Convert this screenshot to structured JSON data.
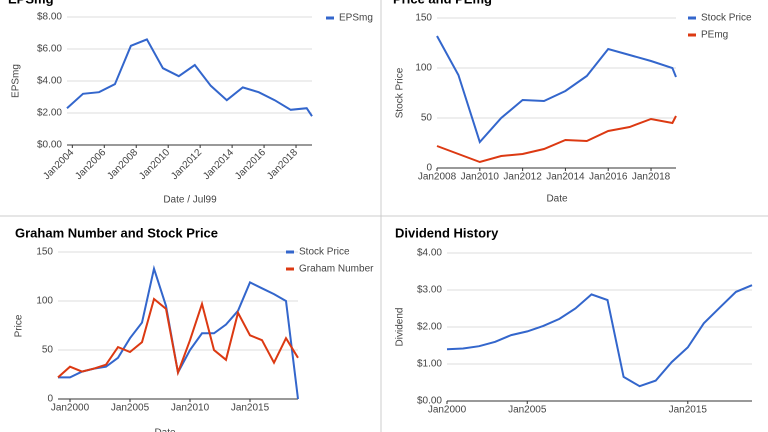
{
  "chart_data": [
    {
      "type": "line",
      "title": "EPSmg",
      "x_label": "Date / Jul99",
      "y_label": "EPSmg",
      "x": [
        "2003-09",
        "2004-09",
        "2005-09",
        "2006-09",
        "2007-09",
        "2008-09",
        "2009-09",
        "2010-09",
        "2011-09",
        "2012-09",
        "2013-09",
        "2014-09",
        "2015-09",
        "2016-09",
        "2017-09",
        "2018-09",
        "2019-01"
      ],
      "series": [
        {
          "name": "EPSmg",
          "color": "#3366cc",
          "values": [
            2.3,
            3.2,
            3.3,
            3.8,
            6.2,
            6.6,
            4.8,
            4.3,
            5.0,
            3.7,
            2.8,
            3.6,
            3.3,
            2.8,
            2.2,
            2.3,
            1.8
          ]
        }
      ],
      "xlim": [
        "2003-09",
        "2019-01"
      ],
      "xticks": [
        {
          "value": "2004-01",
          "label": "Jan2004"
        },
        {
          "value": "2006-01",
          "label": "Jan2006"
        },
        {
          "value": "2008-01",
          "label": "Jan2008"
        },
        {
          "value": "2010-01",
          "label": "Jan2010"
        },
        {
          "value": "2012-01",
          "label": "Jan2012"
        },
        {
          "value": "2014-01",
          "label": "Jan2014"
        },
        {
          "value": "2016-01",
          "label": "Jan2016"
        },
        {
          "value": "2018-01",
          "label": "Jan2018"
        }
      ],
      "ylim": [
        0,
        8
      ],
      "yticks": [
        {
          "value": 0,
          "label": "$0.00"
        },
        {
          "value": 2,
          "label": "$2.00"
        },
        {
          "value": 4,
          "label": "$4.00"
        },
        {
          "value": 6,
          "label": "$6.00"
        },
        {
          "value": 8,
          "label": "$8.00"
        }
      ],
      "grid": true,
      "legend": "right"
    },
    {
      "type": "line",
      "title": "Price and PEmg",
      "x_label": "Date",
      "y_label": "Stock Price",
      "x": [
        "2008-01",
        "2009-01",
        "2010-01",
        "2011-01",
        "2012-01",
        "2013-01",
        "2014-01",
        "2015-01",
        "2016-01",
        "2017-01",
        "2018-01",
        "2019-01",
        "2019-03"
      ],
      "series": [
        {
          "name": "Stock Price",
          "color": "#3366cc",
          "values": [
            132,
            93,
            26,
            50,
            68,
            67,
            77,
            92,
            119,
            113,
            107,
            100,
            91
          ]
        },
        {
          "name": "PEmg",
          "color": "#dc3912",
          "values": [
            22,
            14,
            6,
            12,
            14,
            19,
            28,
            27,
            37,
            41,
            49,
            45,
            52
          ]
        }
      ],
      "xlim": [
        "2008-01",
        "2019-03"
      ],
      "xticks": [
        {
          "value": "2008-01",
          "label": "Jan2008"
        },
        {
          "value": "2010-01",
          "label": "Jan2010"
        },
        {
          "value": "2012-01",
          "label": "Jan2012"
        },
        {
          "value": "2014-01",
          "label": "Jan2014"
        },
        {
          "value": "2016-01",
          "label": "Jan2016"
        },
        {
          "value": "2018-01",
          "label": "Jan2018"
        }
      ],
      "ylim": [
        0,
        150
      ],
      "yticks": [
        0,
        50,
        100,
        150
      ],
      "grid": true,
      "legend": "right"
    },
    {
      "type": "line",
      "title": "Graham Number and Stock Price",
      "x_label": "Date",
      "y_label": "Price",
      "x": [
        1999,
        2000,
        2001,
        2002,
        2003,
        2004,
        2005,
        2006,
        2007,
        2008,
        2009,
        2010,
        2011,
        2012,
        2013,
        2014,
        2015,
        2016,
        2017,
        2018,
        2019
      ],
      "series": [
        {
          "name": "Stock Price",
          "color": "#3366cc",
          "values": [
            22,
            22,
            28,
            31,
            33,
            42,
            62,
            78,
            133,
            95,
            27,
            50,
            67,
            67,
            76,
            90,
            119,
            113,
            107,
            100,
            0
          ]
        },
        {
          "name": "Graham Number",
          "color": "#dc3912",
          "values": [
            22,
            33,
            28,
            31,
            35,
            53,
            48,
            58,
            102,
            92,
            27,
            60,
            97,
            50,
            40,
            88,
            65,
            60,
            37,
            62,
            42
          ]
        }
      ],
      "xlim": [
        1999,
        2019
      ],
      "xticks": [
        {
          "value": 2000,
          "label": "Jan2000"
        },
        {
          "value": 2005,
          "label": "Jan2005"
        },
        {
          "value": 2010,
          "label": "Jan2010"
        },
        {
          "value": 2015,
          "label": "Jan2015"
        }
      ],
      "ylim": [
        0,
        150
      ],
      "yticks": [
        0,
        50,
        100,
        150
      ],
      "grid": true,
      "legend": "right"
    },
    {
      "type": "line",
      "title": "Dividend History",
      "y_label": "Dividend",
      "x": [
        2000,
        2001,
        2002,
        2003,
        2004,
        2005,
        2006,
        2007,
        2008,
        2009,
        2010,
        2011,
        2012,
        2013,
        2014,
        2015,
        2016,
        2017,
        2018,
        2019
      ],
      "series": [
        {
          "name": "Dividend",
          "color": "#3366cc",
          "values": [
            1.4,
            1.42,
            1.48,
            1.6,
            1.78,
            1.88,
            2.03,
            2.22,
            2.5,
            2.88,
            2.73,
            0.65,
            0.4,
            0.55,
            1.05,
            1.45,
            2.1,
            2.53,
            2.95,
            3.13
          ]
        }
      ],
      "xlim": [
        2000,
        2019
      ],
      "xticks": [
        {
          "value": 2000,
          "label": "Jan2000"
        },
        {
          "value": 2005,
          "label": "Jan2005"
        },
        {
          "value": 2015,
          "label": "Jan2015"
        }
      ],
      "ylim": [
        0,
        4
      ],
      "yticks": [
        {
          "value": 0,
          "label": "$0.00"
        },
        {
          "value": 1,
          "label": "$1.00"
        },
        {
          "value": 2,
          "label": "$2.00"
        },
        {
          "value": 3,
          "label": "$3.00"
        },
        {
          "value": 4,
          "label": "$4.00"
        }
      ],
      "grid": true
    }
  ]
}
